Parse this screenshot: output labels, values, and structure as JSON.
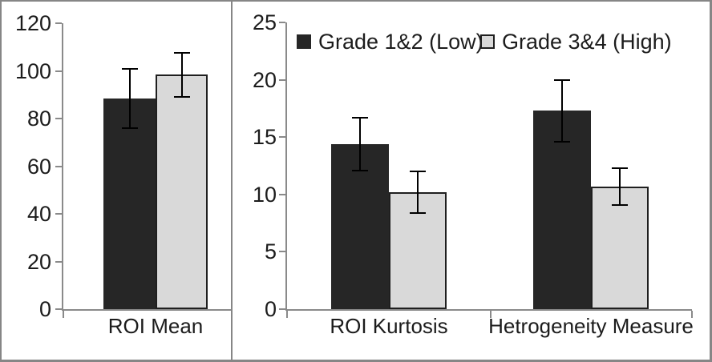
{
  "colors": {
    "dark_series": "#262626",
    "light_series": "#D9D9D9",
    "bar_border": "#1f1f1f",
    "axis": "#8a8a8a",
    "error_bar": "#000000",
    "text": "#1c1c1c",
    "background": "#ffffff",
    "frame": "#868686"
  },
  "legend": {
    "entries": [
      "Grade 1&2 (Low)",
      "Grade 3&4 (High)"
    ]
  },
  "chart_data": [
    {
      "type": "bar",
      "title": "",
      "xlabel": "",
      "ylabel": "",
      "categories": [
        "ROI Mean"
      ],
      "series": [
        {
          "name": "Grade 1&2 (Low)",
          "color": "#262626",
          "outlined": false,
          "values": [
            88.5
          ],
          "errors": [
            12.4
          ]
        },
        {
          "name": "Grade 3&4 (High)",
          "color": "#D9D9D9",
          "outlined": true,
          "values": [
            98.4
          ],
          "errors": [
            9.2
          ]
        }
      ],
      "ylim": [
        0,
        120
      ],
      "yticks": [
        0,
        20,
        40,
        60,
        80,
        100,
        120
      ],
      "grid": false,
      "legend_position": "none",
      "error_bars": true
    },
    {
      "type": "bar",
      "title": "",
      "xlabel": "",
      "ylabel": "",
      "categories": [
        "ROI Kurtosis",
        "Hetrogeneity Measure"
      ],
      "series": [
        {
          "name": "Grade 1&2 (Low)",
          "color": "#262626",
          "outlined": false,
          "values": [
            14.4,
            17.3
          ],
          "errors": [
            2.3,
            2.7
          ]
        },
        {
          "name": "Grade 3&4 (High)",
          "color": "#D9D9D9",
          "outlined": true,
          "values": [
            10.2,
            10.7
          ],
          "errors": [
            1.8,
            1.6
          ]
        }
      ],
      "ylim": [
        0,
        25
      ],
      "yticks": [
        0,
        5,
        10,
        15,
        20,
        25
      ],
      "grid": false,
      "legend_position": "top",
      "error_bars": true
    }
  ]
}
